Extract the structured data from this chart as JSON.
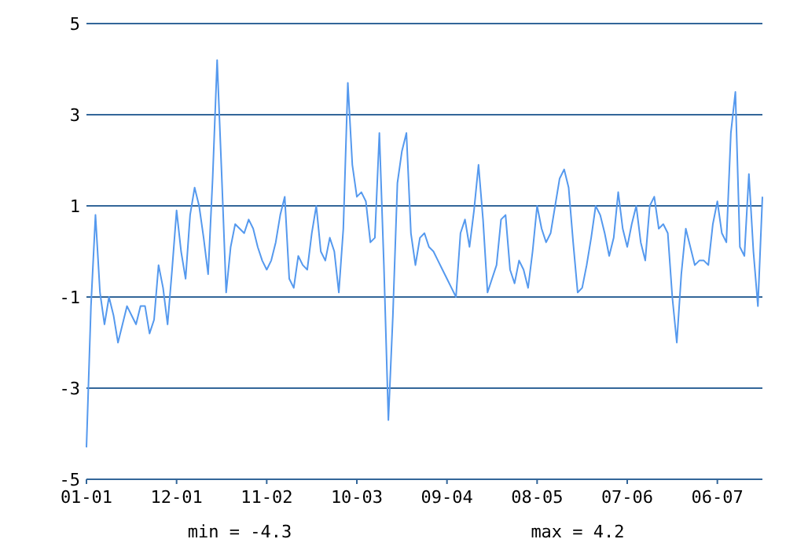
{
  "chart_data": {
    "type": "line",
    "categories": [
      "01-01",
      null,
      null,
      null,
      null,
      null,
      null,
      null,
      null,
      null,
      null,
      null,
      null,
      null,
      null,
      null,
      null,
      null,
      null,
      null,
      "12-01",
      null,
      null,
      null,
      null,
      null,
      null,
      null,
      null,
      null,
      null,
      null,
      null,
      null,
      null,
      null,
      null,
      null,
      null,
      null,
      "11-02",
      null,
      null,
      null,
      null,
      null,
      null,
      null,
      null,
      null,
      null,
      null,
      null,
      null,
      null,
      null,
      null,
      null,
      null,
      null,
      "10-03",
      null,
      null,
      null,
      null,
      null,
      null,
      null,
      null,
      null,
      null,
      null,
      null,
      null,
      null,
      null,
      null,
      null,
      null,
      null,
      "09-04",
      null,
      null,
      null,
      null,
      null,
      null,
      null,
      null,
      null,
      null,
      null,
      null,
      null,
      null,
      null,
      null,
      null,
      null,
      null,
      "08-05",
      null,
      null,
      null,
      null,
      null,
      null,
      null,
      null,
      null,
      null,
      null,
      null,
      null,
      null,
      null,
      null,
      null,
      null,
      null,
      "07-06",
      null,
      null,
      null,
      null,
      null,
      null,
      null,
      null,
      null,
      null,
      null,
      null,
      null,
      null,
      null,
      null,
      null,
      null,
      null,
      "06-07",
      null,
      null,
      null,
      null,
      null,
      null,
      null,
      null,
      null,
      null
    ],
    "series": [
      {
        "color": "#5599ee",
        "values": [
          -4.3,
          -1.2,
          0.8,
          -0.9,
          -1.6,
          -1.0,
          -1.4,
          -2.0,
          -1.6,
          -1.2,
          -1.4,
          -1.6,
          -1.2,
          -1.2,
          -1.8,
          -1.5,
          -0.3,
          -0.8,
          -1.6,
          -0.4,
          0.9,
          0.0,
          -0.6,
          0.8,
          1.4,
          1.0,
          0.3,
          -0.5,
          1.6,
          4.2,
          1.7,
          -0.9,
          0.1,
          0.6,
          0.5,
          0.4,
          0.7,
          0.5,
          0.1,
          -0.2,
          -0.4,
          -0.2,
          0.2,
          0.8,
          1.2,
          -0.6,
          -0.8,
          -0.1,
          -0.3,
          -0.4,
          0.4,
          1.0,
          0.0,
          -0.2,
          0.3,
          0.0,
          -0.9,
          0.5,
          3.7,
          1.9,
          1.2,
          1.3,
          1.1,
          0.2,
          0.3,
          2.6,
          -0.3,
          -3.7,
          -1.4,
          1.5,
          2.2,
          2.6,
          0.4,
          -0.3,
          0.3,
          0.4,
          0.1,
          0.0,
          -0.2,
          -0.4,
          -0.6,
          -0.8,
          -1.0,
          0.4,
          0.7,
          0.1,
          0.9,
          1.9,
          0.7,
          -0.9,
          -0.6,
          -0.3,
          0.7,
          0.8,
          -0.4,
          -0.7,
          -0.2,
          -0.4,
          -0.8,
          0.0,
          1.0,
          0.5,
          0.2,
          0.4,
          1.0,
          1.6,
          1.8,
          1.4,
          0.2,
          -0.9,
          -0.8,
          -0.3,
          0.3,
          1.0,
          0.8,
          0.4,
          -0.1,
          0.3,
          1.3,
          0.5,
          0.1,
          0.6,
          1.0,
          0.2,
          -0.2,
          1.0,
          1.2,
          0.5,
          0.6,
          0.4,
          -1.0,
          -2.0,
          -0.5,
          0.5,
          0.1,
          -0.3,
          -0.2,
          -0.2,
          -0.3,
          0.6,
          1.1,
          0.4,
          0.2,
          2.6,
          3.5,
          0.1,
          -0.1,
          1.7,
          0.0,
          -1.2,
          1.2
        ]
      }
    ],
    "ylim": [
      -5,
      5
    ],
    "yticks": [
      -5,
      -3,
      -1,
      1,
      3,
      5
    ],
    "grid": "y",
    "marker": "none",
    "line_style": "solid",
    "annotations": [
      "min = -4.3",
      "max = 4.2"
    ]
  }
}
